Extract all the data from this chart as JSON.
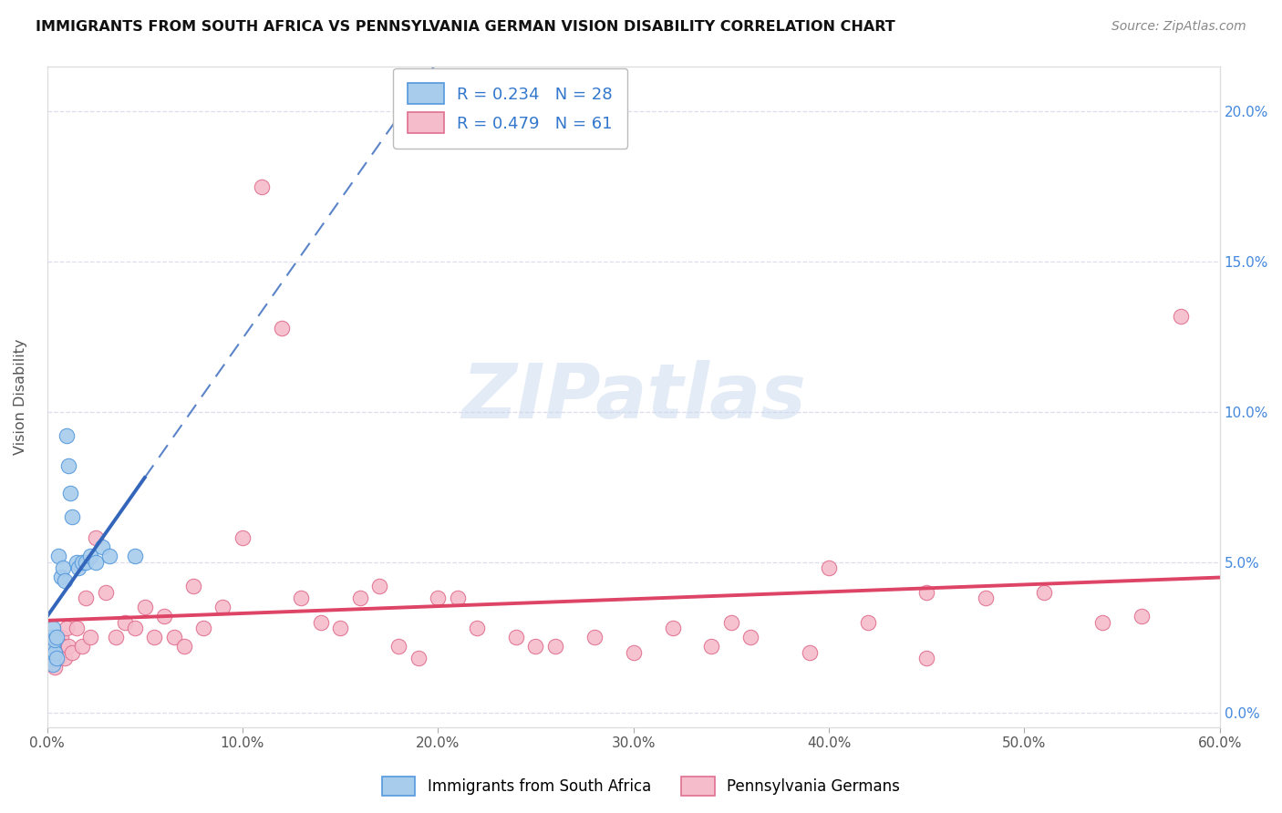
{
  "title": "IMMIGRANTS FROM SOUTH AFRICA VS PENNSYLVANIA GERMAN VISION DISABILITY CORRELATION CHART",
  "source": "Source: ZipAtlas.com",
  "ylabel": "Vision Disability",
  "legend_labels": [
    "Immigrants from South Africa",
    "Pennsylvania Germans"
  ],
  "r_blue": 0.234,
  "n_blue": 28,
  "r_pink": 0.479,
  "n_pink": 61,
  "blue_color": "#a8ccec",
  "pink_color": "#f5bccb",
  "blue_edge_color": "#5599dd",
  "pink_edge_color": "#e07090",
  "blue_line_color": "#3366bb",
  "pink_line_color": "#dd4466",
  "xlim_min": 0.0,
  "xlim_max": 0.6,
  "ylim_min": -0.005,
  "ylim_max": 0.215,
  "xtick_vals": [
    0.0,
    0.1,
    0.2,
    0.3,
    0.4,
    0.5,
    0.6
  ],
  "ytick_vals": [
    0.0,
    0.05,
    0.1,
    0.15,
    0.2
  ],
  "watermark_text": "ZIPatlas",
  "blue_x": [
    0.001,
    0.001,
    0.002,
    0.002,
    0.003,
    0.003,
    0.003,
    0.004,
    0.004,
    0.005,
    0.005,
    0.006,
    0.007,
    0.008,
    0.009,
    0.01,
    0.011,
    0.012,
    0.013,
    0.015,
    0.016,
    0.018,
    0.02,
    0.022,
    0.025,
    0.028,
    0.032,
    0.045
  ],
  "blue_y": [
    0.018,
    0.022,
    0.02,
    0.025,
    0.016,
    0.022,
    0.028,
    0.02,
    0.024,
    0.018,
    0.025,
    0.052,
    0.045,
    0.048,
    0.044,
    0.092,
    0.082,
    0.073,
    0.065,
    0.05,
    0.048,
    0.05,
    0.05,
    0.052,
    0.05,
    0.055,
    0.052,
    0.052
  ],
  "pink_x": [
    0.001,
    0.002,
    0.003,
    0.004,
    0.005,
    0.006,
    0.007,
    0.008,
    0.009,
    0.01,
    0.011,
    0.013,
    0.015,
    0.018,
    0.02,
    0.022,
    0.025,
    0.03,
    0.035,
    0.04,
    0.045,
    0.05,
    0.055,
    0.06,
    0.065,
    0.07,
    0.075,
    0.08,
    0.09,
    0.1,
    0.11,
    0.12,
    0.13,
    0.14,
    0.15,
    0.16,
    0.17,
    0.18,
    0.19,
    0.2,
    0.21,
    0.22,
    0.24,
    0.26,
    0.28,
    0.3,
    0.32,
    0.34,
    0.36,
    0.39,
    0.42,
    0.45,
    0.48,
    0.51,
    0.54,
    0.56,
    0.58,
    0.25,
    0.35,
    0.45,
    0.4
  ],
  "pink_y": [
    0.02,
    0.018,
    0.022,
    0.015,
    0.02,
    0.018,
    0.025,
    0.022,
    0.018,
    0.028,
    0.022,
    0.02,
    0.028,
    0.022,
    0.038,
    0.025,
    0.058,
    0.04,
    0.025,
    0.03,
    0.028,
    0.035,
    0.025,
    0.032,
    0.025,
    0.022,
    0.042,
    0.028,
    0.035,
    0.058,
    0.175,
    0.128,
    0.038,
    0.03,
    0.028,
    0.038,
    0.042,
    0.022,
    0.018,
    0.038,
    0.038,
    0.028,
    0.025,
    0.022,
    0.025,
    0.02,
    0.028,
    0.022,
    0.025,
    0.02,
    0.03,
    0.018,
    0.038,
    0.04,
    0.03,
    0.032,
    0.132,
    0.022,
    0.03,
    0.04,
    0.048
  ]
}
